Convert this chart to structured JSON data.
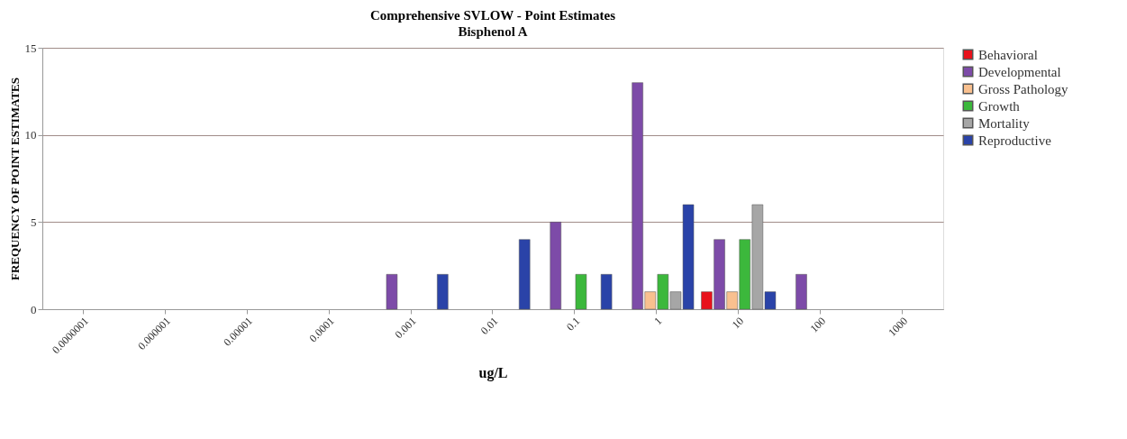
{
  "chart_data": {
    "type": "bar",
    "title": "Comprehensive SVLOW - Point Estimates",
    "subtitle": "Bisphenol A",
    "xlabel": "ug/L",
    "ylabel": "FREQUENCY  OF POINT ESTIMATES",
    "categories": [
      "0.0000001",
      "0.000001",
      "0.00001",
      "0.0001",
      "0.001",
      "0.01",
      "0.1",
      "1",
      "10",
      "100",
      "1000"
    ],
    "series": [
      {
        "name": "Behavioral",
        "color": "#e8121c",
        "values": [
          null,
          null,
          null,
          null,
          null,
          null,
          null,
          null,
          1,
          null,
          null
        ]
      },
      {
        "name": "Developmental",
        "color": "#7d4ba8",
        "values": [
          null,
          null,
          null,
          null,
          2,
          null,
          5,
          13,
          4,
          2,
          null
        ]
      },
      {
        "name": "Gross Pathology",
        "color": "#f9c08f",
        "values": [
          null,
          null,
          null,
          null,
          null,
          null,
          null,
          1,
          1,
          null,
          null
        ]
      },
      {
        "name": "Growth",
        "color": "#3cb83c",
        "values": [
          null,
          null,
          null,
          null,
          null,
          null,
          2,
          2,
          4,
          null,
          null
        ]
      },
      {
        "name": "Mortality",
        "color": "#a6a6a6",
        "values": [
          null,
          null,
          null,
          null,
          null,
          null,
          null,
          1,
          6,
          null,
          null
        ]
      },
      {
        "name": "Reproductive",
        "color": "#2a43a8",
        "values": [
          null,
          null,
          null,
          null,
          2,
          4,
          2,
          6,
          1,
          null,
          null
        ]
      }
    ],
    "ylim": [
      0,
      15
    ],
    "yticks": [
      0,
      5,
      10,
      15
    ],
    "grid": "y",
    "legend": "right"
  }
}
